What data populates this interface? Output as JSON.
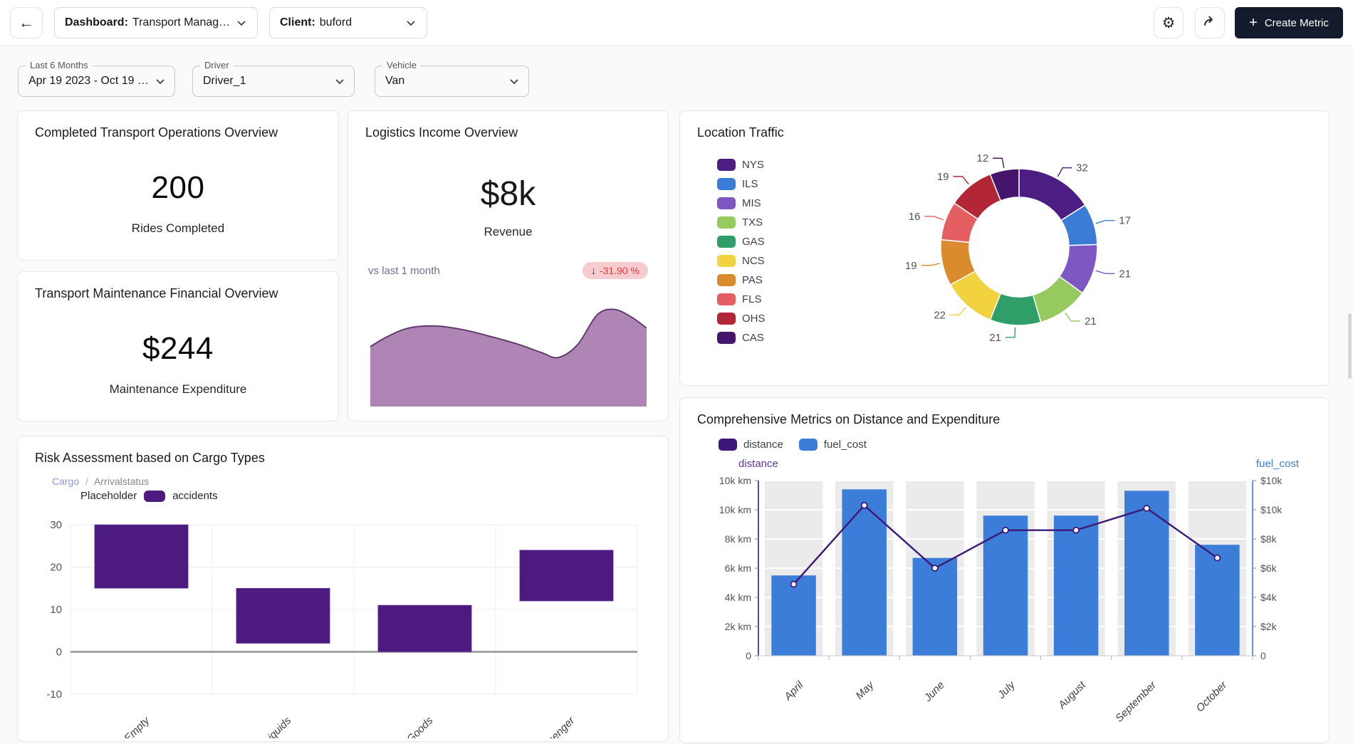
{
  "header": {
    "dashboard_prefix": "Dashboard:",
    "dashboard_value": "Transport Manag…",
    "client_prefix": "Client:",
    "client_value": "buford",
    "create_metric": "Create Metric"
  },
  "filters": {
    "period": {
      "label": "Last 6 Months",
      "value": "Apr 19 2023 - Oct 19 …"
    },
    "driver": {
      "label": "Driver",
      "value": "Driver_1"
    },
    "vehicle": {
      "label": "Vehicle",
      "value": "Van"
    }
  },
  "cards": {
    "rides": {
      "title": "Completed Transport Operations Overview",
      "value": "200",
      "caption": "Rides Completed"
    },
    "maintenance": {
      "title": "Transport Maintenance Financial Overview",
      "value": "$244",
      "caption": "Maintenance Expenditure"
    },
    "income": {
      "title": "Logistics Income Overview",
      "value": "$8k",
      "caption": "Revenue",
      "comparison_label": "vs last 1 month",
      "delta": "-31.90 %",
      "delta_arrow": "↓",
      "chart_data": {
        "type": "area",
        "x_percent": [
          0,
          6,
          14,
          24,
          34,
          44,
          54,
          62,
          68,
          75,
          82,
          88,
          94,
          100
        ],
        "y_percent": [
          58,
          68,
          77,
          79,
          75,
          68,
          60,
          52,
          47,
          60,
          90,
          96,
          89,
          77
        ],
        "fill_color": "#a87bb0",
        "stroke_color": "#5d3a6b"
      }
    },
    "location": {
      "title": "Location Traffic",
      "chart_data": {
        "type": "pie",
        "labels": [
          "NYS",
          "ILS",
          "MIS",
          "TXS",
          "GAS",
          "NCS",
          "PAS",
          "FLS",
          "OHS",
          "CAS"
        ],
        "values": [
          32,
          17,
          21,
          21,
          21,
          22,
          19,
          16,
          19,
          12
        ],
        "colors": [
          "#4c1d82",
          "#3a7cd6",
          "#7e57c2",
          "#96c95e",
          "#2f9e68",
          "#f2d23e",
          "#da8b2e",
          "#e55f62",
          "#b32638",
          "#45156b"
        ]
      }
    },
    "risk": {
      "title": "Risk Assessment based on Cargo Types",
      "breadcrumb_primary": "Cargo",
      "breadcrumb_separator": "/",
      "breadcrumb_secondary": "Arrivalstatus",
      "legend_label": "Placeholder",
      "series_name": "accidents",
      "chart_data": {
        "type": "bar",
        "categories": [
          "Empty",
          "Liquids",
          "Goods",
          "Passenger"
        ],
        "bar_ranges": [
          [
            15,
            30
          ],
          [
            2,
            15
          ],
          [
            0,
            11
          ],
          [
            12,
            24
          ]
        ],
        "yticks": [
          30,
          20,
          10,
          0,
          -10
        ],
        "ylim": [
          -10,
          30
        ],
        "bar_color": "#4d1a7f"
      }
    },
    "metrics": {
      "title": "Comprehensive Metrics on Distance and Expenditure",
      "chart_data": {
        "type": "bar+line",
        "categories": [
          "April",
          "May",
          "June",
          "July",
          "August",
          "September",
          "October"
        ],
        "series": [
          {
            "name": "distance",
            "type": "line",
            "axis": "left",
            "color": "#3d1878",
            "values_k_km": [
              4.9,
              10.3,
              6.0,
              8.6,
              8.6,
              10.1,
              6.7
            ]
          },
          {
            "name": "fuel_cost",
            "type": "bar",
            "axis": "right",
            "color": "#3b7dd8",
            "values_k_usd": [
              5.5,
              11.4,
              6.7,
              9.6,
              9.6,
              11.3,
              7.6
            ]
          }
        ],
        "left_axis_title": "distance",
        "right_axis_title": "fuel_cost",
        "left_ticks": [
          "0",
          "2k km",
          "4k km",
          "6k km",
          "8k km",
          "10k km",
          "10k km"
        ],
        "right_ticks": [
          "0",
          "$2k",
          "$4k",
          "$6k",
          "$8k",
          "$10k",
          "$10k"
        ],
        "axis_max": 12,
        "band_color": "#ebebeb"
      }
    }
  }
}
